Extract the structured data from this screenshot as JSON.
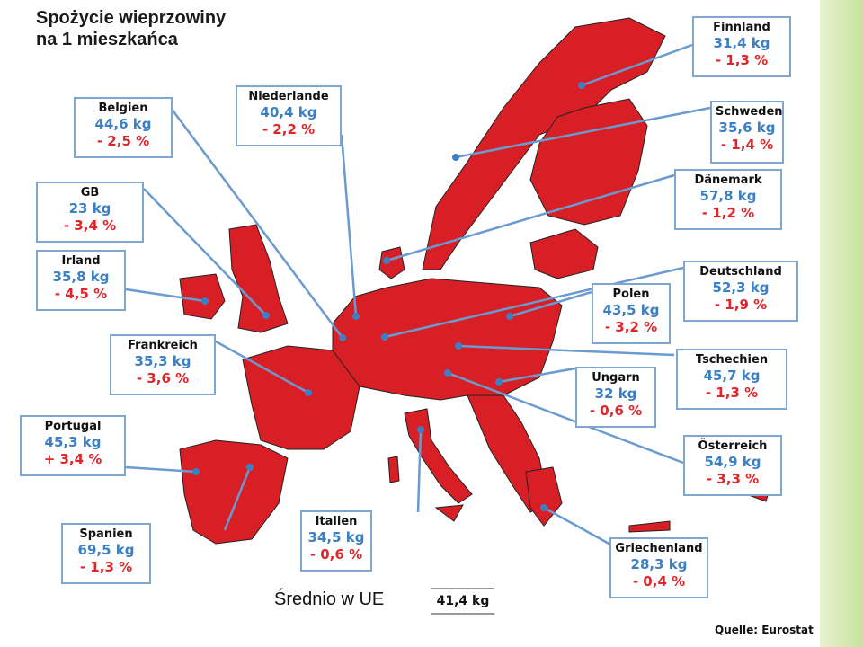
{
  "title": {
    "line1": "Spożycie wieprzowiny",
    "line2": "na 1 mieszkańca"
  },
  "countries": [
    {
      "id": "finnland",
      "name": "Finnland",
      "kg": "31,4 kg",
      "pct": "- 1,3 %"
    },
    {
      "id": "belgien",
      "name": "Belgien",
      "kg": "44,6 kg",
      "pct": "- 2,5 %"
    },
    {
      "id": "niederlande",
      "name": "Niederlande",
      "kg": "40,4 kg",
      "pct": "- 2,2 %"
    },
    {
      "id": "schweden",
      "name": "Schweden",
      "kg": "35,6 kg",
      "pct": "- 1,4 %"
    },
    {
      "id": "gb",
      "name": "GB",
      "kg": "23 kg",
      "pct": "- 3,4 %"
    },
    {
      "id": "daenemark",
      "name": "Dänemark",
      "kg": "57,8 kg",
      "pct": "- 1,2 %"
    },
    {
      "id": "irland",
      "name": "Irland",
      "kg": "35,8 kg",
      "pct": "- 4,5 %"
    },
    {
      "id": "deutschland",
      "name": "Deutschland",
      "kg": "52,3 kg",
      "pct": "- 1,9 %"
    },
    {
      "id": "polen",
      "name": "Polen",
      "kg": "43,5 kg",
      "pct": "- 3,2 %"
    },
    {
      "id": "frankreich",
      "name": "Frankreich",
      "kg": "35,3 kg",
      "pct": "- 3,6 %"
    },
    {
      "id": "tschechien",
      "name": "Tschechien",
      "kg": "45,7 kg",
      "pct": "- 1,3 %"
    },
    {
      "id": "ungarn",
      "name": "Ungarn",
      "kg": "32 kg",
      "pct": "- 0,6 %"
    },
    {
      "id": "portugal",
      "name": "Portugal",
      "kg": "45,3 kg",
      "pct": "+ 3,4 %"
    },
    {
      "id": "oesterreich",
      "name": "Österreich",
      "kg": "54,9 kg",
      "pct": "- 3,3 %"
    },
    {
      "id": "spanien",
      "name": "Spanien",
      "kg": "69,5 kg",
      "pct": "- 1,3 %"
    },
    {
      "id": "italien",
      "name": "Italien",
      "kg": "34,5 kg",
      "pct": "- 0,6 %"
    },
    {
      "id": "griechenland",
      "name": "Griechenland",
      "kg": "28,3 kg",
      "pct": "- 0,4 %"
    }
  ],
  "average": {
    "label": "Średnio w UE",
    "value": "41,4 kg"
  },
  "source": "Quelle: Eurostat",
  "colors": {
    "map_red": "#d81f26",
    "leader_blue": "#6a9bd0",
    "kg_blue": "#3b7fc4",
    "pct_red": "#e0252a"
  }
}
